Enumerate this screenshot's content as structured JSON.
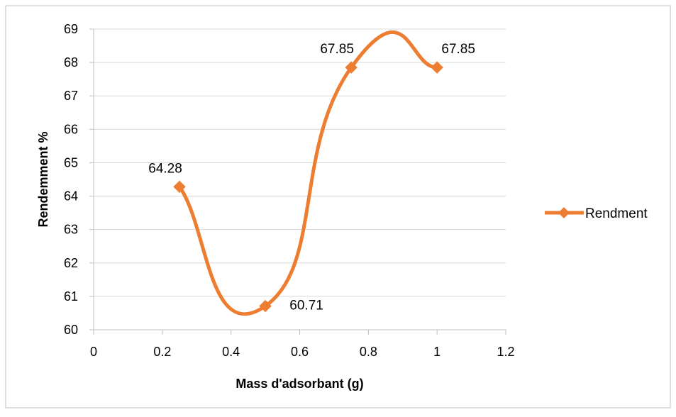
{
  "chart_data": {
    "type": "line",
    "xlabel": "Mass d'adsorbant (g)",
    "ylabel": "Rendemment %",
    "xlim": [
      0,
      1.2
    ],
    "ylim": [
      60,
      69
    ],
    "x_ticks": [
      "0",
      "0.2",
      "0.4",
      "0.6",
      "0.8",
      "1",
      "1.2"
    ],
    "y_ticks": [
      "60",
      "61",
      "62",
      "63",
      "64",
      "65",
      "66",
      "67",
      "68",
      "69"
    ],
    "grid": "horizontal",
    "smooth": true,
    "legend_position": "right",
    "series": [
      {
        "name": "Rendment",
        "color": "#ED7D31",
        "marker": "diamond",
        "points": [
          {
            "x": 0.25,
            "y": 64.28,
            "label": "64.28"
          },
          {
            "x": 0.5,
            "y": 60.71,
            "label": "60.71"
          },
          {
            "x": 0.75,
            "y": 67.85,
            "label": "67.85"
          },
          {
            "x": 1,
            "y": 67.85,
            "label": "67.85"
          }
        ]
      }
    ]
  }
}
